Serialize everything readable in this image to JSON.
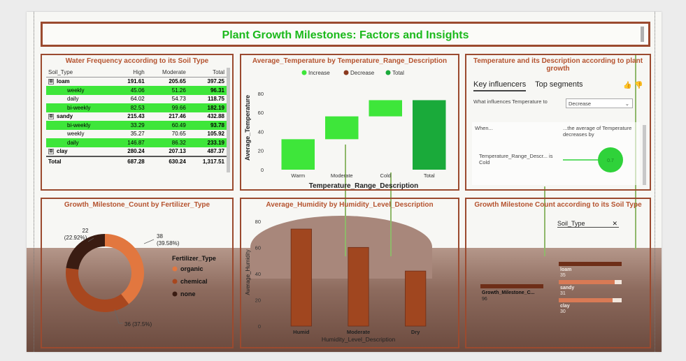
{
  "title": "Plant Growth Milestones: Factors and Insights",
  "colors": {
    "accent_green": "#1bb91b",
    "border": "#9b4a2f",
    "title_orange": "#b5532f",
    "bar_brown": "#a0461f"
  },
  "water_matrix": {
    "title": "Water Frequency according to its Soil Type",
    "headers": [
      "Soil_Type",
      "High",
      "Moderate",
      "Total"
    ],
    "rows": [
      {
        "label": "loam",
        "high": "191.61",
        "moderate": "205.65",
        "total": "397.25",
        "kind": "parent",
        "expand": "⊟"
      },
      {
        "label": "weekly",
        "high": "45.06",
        "moderate": "51.26",
        "total": "96.31",
        "kind": "green"
      },
      {
        "label": "daily",
        "high": "64.02",
        "moderate": "54.73",
        "total": "118.75",
        "kind": "plain"
      },
      {
        "label": "bi-weekly",
        "high": "82.53",
        "moderate": "99.66",
        "total": "182.19",
        "kind": "green"
      },
      {
        "label": "sandy",
        "high": "215.43",
        "moderate": "217.46",
        "total": "432.88",
        "kind": "parent",
        "expand": "⊟"
      },
      {
        "label": "bi-weekly",
        "high": "33.29",
        "moderate": "60.49",
        "total": "93.78",
        "kind": "green"
      },
      {
        "label": "weekly",
        "high": "35.27",
        "moderate": "70.65",
        "total": "105.92",
        "kind": "plain"
      },
      {
        "label": "daily",
        "high": "146.87",
        "moderate": "86.32",
        "total": "233.19",
        "kind": "green"
      },
      {
        "label": "clay",
        "high": "280.24",
        "moderate": "207.13",
        "total": "487.37",
        "kind": "parent",
        "expand": "⊟"
      }
    ],
    "total_row": {
      "label": "Total",
      "high": "687.28",
      "moderate": "630.24",
      "total": "1,317.51"
    }
  },
  "temp_waterfall": {
    "title": "Average_Temperature by Temperature_Range_Description",
    "legend": [
      {
        "label": "Increase",
        "color": "#3ee63a"
      },
      {
        "label": "Decrease",
        "color": "#8b3a1f"
      },
      {
        "label": "Total",
        "color": "#1aaa3a"
      }
    ]
  },
  "key_influencers": {
    "title": "Temperature and its Description according to plant growth",
    "tab_key": "Key influencers",
    "tab_top": "Top segments",
    "question": "What influences Temperature to",
    "dropdown_value": "Decrease",
    "when": "When...",
    "avg_text": "...the average of Temperature decreases by",
    "condition": "Temperature_Range_Descr... is Cold",
    "bubble_value": "0.7"
  },
  "fertilizer_donut": {
    "title": "Growth_Milestone_Count by Fertilizer_Type",
    "legend_title": "Fertilizer_Type",
    "label_organic": "38",
    "label_organic_pct": "(39.58%)",
    "label_chemical": "36 (37.5%)",
    "label_none": "22",
    "label_none_pct": "(22.92%)"
  },
  "humidity_chart": {
    "title": "Average_Humidity by Humidity_Level_Description"
  },
  "soil_tree": {
    "title": "Growth Milestone Count according to its Soil Type",
    "slicer": "Soil_Type",
    "root_label": "Growth_Milestone_C...",
    "root_value": "96",
    "items": [
      {
        "label": "loam",
        "value": "35",
        "fill": 1.0
      },
      {
        "label": "sandy",
        "value": "31",
        "fill": 0.886
      },
      {
        "label": "clay",
        "value": "30",
        "fill": 0.857
      }
    ]
  },
  "chart_data": [
    {
      "type": "bar",
      "title": "Average_Temperature by Temperature_Range_Description",
      "xlabel": "Temperature_Range_Description",
      "ylabel": "Average_Temperature",
      "categories": [
        "Warm",
        "Moderate",
        "Cold",
        "Total"
      ],
      "series": [
        {
          "name": "Increase",
          "values": [
            32,
            24,
            17,
            null
          ]
        },
        {
          "name": "Total",
          "values": [
            null,
            null,
            null,
            73
          ]
        }
      ],
      "y_ticks": [
        0,
        20,
        40,
        60,
        80
      ],
      "ylim": [
        0,
        88
      ],
      "legend": "top"
    },
    {
      "type": "pie",
      "title": "Growth_Milestone_Count by Fertilizer_Type",
      "categories": [
        "organic",
        "chemical",
        "none"
      ],
      "values": [
        38,
        36,
        22
      ],
      "colors": [
        "#e2773f",
        "#a8471f",
        "#3a1c12"
      ],
      "legend": "right"
    },
    {
      "type": "bar",
      "title": "Average_Humidity by Humidity_Level_Description",
      "xlabel": "Humidity_Level_Description",
      "ylabel": "Average_Humidity",
      "categories": [
        "Humid",
        "Moderate",
        "Dry"
      ],
      "values": [
        74,
        60,
        42
      ],
      "y_ticks": [
        0,
        20,
        40,
        60,
        80
      ],
      "ylim": [
        0,
        82
      ]
    }
  ]
}
